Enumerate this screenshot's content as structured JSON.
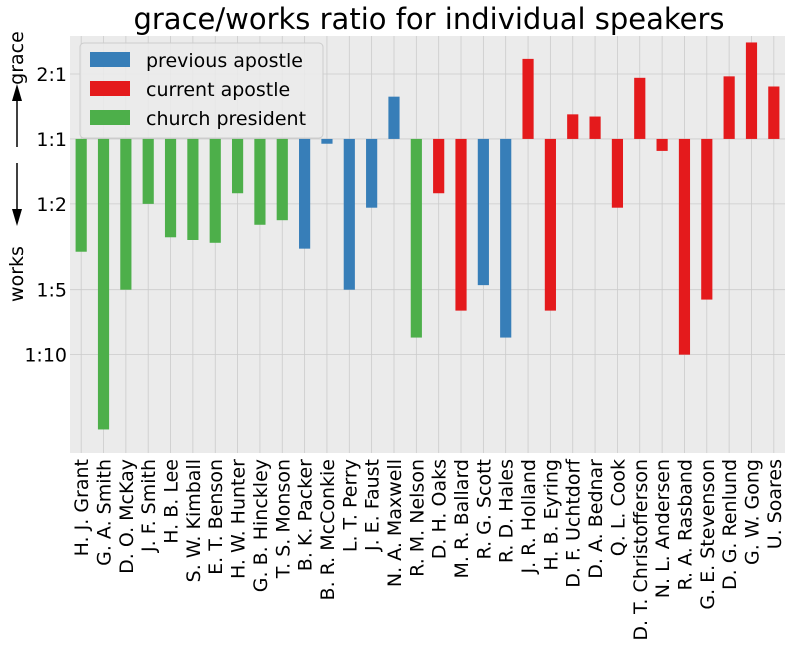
{
  "chart_data": {
    "type": "bar",
    "title": "grace/works ratio for individual speakers",
    "ylabel_top": "grace",
    "ylabel_bottom": "works",
    "yscale": "log",
    "ylim": [
      0.035,
      3.0
    ],
    "yticks": [
      {
        "value": 2,
        "label": "2:1"
      },
      {
        "value": 1,
        "label": "1:1"
      },
      {
        "value": 0.5,
        "label": "1:2"
      },
      {
        "value": 0.2,
        "label": "1:5"
      },
      {
        "value": 0.1,
        "label": "1:10"
      }
    ],
    "grid": true,
    "legend_position": "top-left",
    "legend": [
      {
        "key": "previous",
        "label": "previous apostle",
        "color": "#377eb8"
      },
      {
        "key": "current",
        "label": "current apostle",
        "color": "#e41a1c"
      },
      {
        "key": "president",
        "label": "church president",
        "color": "#4daf4a"
      }
    ],
    "categories": [
      "H. J. Grant",
      "G. A. Smith",
      "D. O. McKay",
      "J. F. Smith",
      "H. B. Lee",
      "S. W. Kimball",
      "E. T. Benson",
      "H. W. Hunter",
      "G. B. Hinckley",
      "T. S. Monson",
      "B. K. Packer",
      "B. R. McConkie",
      "L. T. Perry",
      "J. E. Faust",
      "N. A. Maxwell",
      "R. M. Nelson",
      "D. H. Oaks",
      "M. R. Ballard",
      "R. G. Scott",
      "R. D. Hales",
      "J. R. Holland",
      "H. B. Eyring",
      "D. F. Uchtdorf",
      "D. A. Bednar",
      "Q. L. Cook",
      "D. T. Christofferson",
      "N. L. Andersen",
      "R. A. Rasband",
      "G. E. Stevenson",
      "D. G. Renlund",
      "G. W. Gong",
      "U. Soares"
    ],
    "values": [
      0.3,
      0.045,
      0.2,
      0.5,
      0.35,
      0.34,
      0.33,
      0.56,
      0.4,
      0.42,
      0.31,
      0.95,
      0.2,
      0.48,
      1.57,
      0.12,
      0.56,
      0.16,
      0.21,
      0.12,
      2.35,
      0.16,
      1.3,
      1.27,
      0.48,
      1.92,
      0.88,
      0.1,
      0.18,
      1.95,
      2.8,
      1.75
    ],
    "groups": [
      "president",
      "president",
      "president",
      "president",
      "president",
      "president",
      "president",
      "president",
      "president",
      "president",
      "previous",
      "previous",
      "previous",
      "previous",
      "previous",
      "president",
      "current",
      "current",
      "previous",
      "previous",
      "current",
      "current",
      "current",
      "current",
      "current",
      "current",
      "current",
      "current",
      "current",
      "current",
      "current",
      "current"
    ]
  }
}
